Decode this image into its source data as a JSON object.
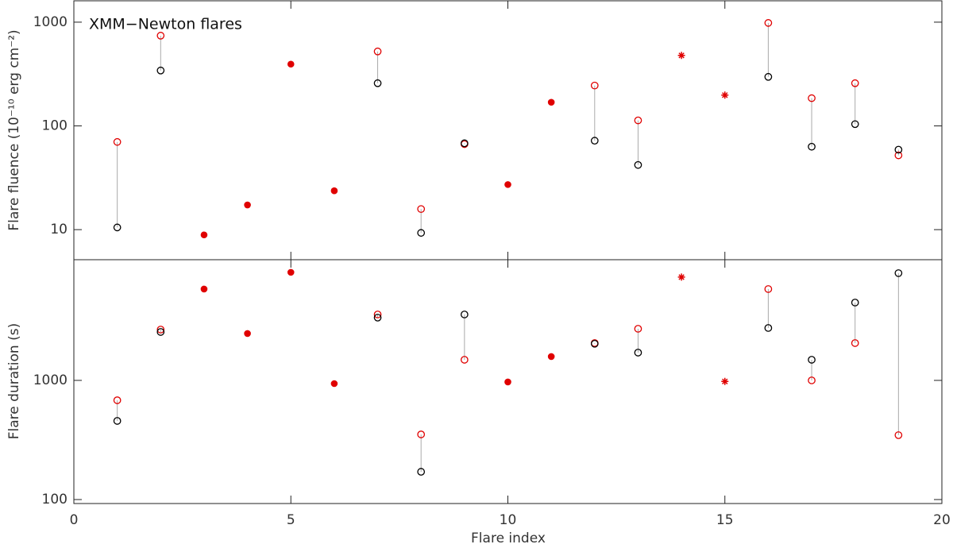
{
  "chart_data": [
    {
      "type": "scatter",
      "annotation": "XMM−Newton flares",
      "ylabel": "Flare fluence (10⁻¹⁰ erg cm⁻²)",
      "log_y": true,
      "xlim": [
        0,
        20
      ],
      "ylim": [
        5.13,
        1607
      ],
      "yticks": [
        10,
        100,
        1000
      ],
      "connectors": true,
      "series": [
        {
          "marker": "open",
          "color": "#e00000",
          "x": [
            1,
            2,
            7,
            8,
            9,
            12,
            13,
            16,
            17,
            18,
            19
          ],
          "values": [
            70,
            741,
            522,
            15.8,
            66.7,
            245,
            113,
            983,
            185,
            258,
            52
          ]
        },
        {
          "marker": "open",
          "color": "#000000",
          "x": [
            1,
            2,
            7,
            8,
            9,
            12,
            13,
            16,
            17,
            18,
            19
          ],
          "values": [
            10.5,
            342,
            258,
            9.3,
            68,
            72,
            42,
            297,
            63,
            104,
            59
          ]
        },
        {
          "marker": "filled",
          "color": "#e00000",
          "x": [
            3,
            4,
            5,
            6,
            10,
            11
          ],
          "values": [
            8.9,
            17.3,
            394,
            23.7,
            27.2,
            169
          ]
        },
        {
          "marker": "asterisk",
          "color": "#e00000",
          "x": [
            14,
            15
          ],
          "values": [
            478,
            198
          ]
        }
      ]
    },
    {
      "type": "scatter",
      "ylabel": "Flare duration (s)",
      "xlabel": "Flare index",
      "log_y": true,
      "xlim": [
        0,
        20
      ],
      "xticks": [
        0,
        5,
        10,
        15,
        20
      ],
      "ylim": [
        92.6,
        10300
      ],
      "yticks": [
        100,
        1000
      ],
      "connectors": true,
      "series": [
        {
          "marker": "open",
          "color": "#e00000",
          "x": [
            1,
            2,
            7,
            8,
            9,
            12,
            13,
            16,
            17,
            18,
            19
          ],
          "values": [
            681,
            2670,
            3575,
            352,
            1490,
            2057,
            2712,
            5843,
            1000,
            2057,
            347
          ]
        },
        {
          "marker": "open",
          "color": "#000000",
          "x": [
            1,
            2,
            7,
            8,
            9,
            12,
            13,
            16,
            17,
            18,
            19
          ],
          "values": [
            457,
            2550,
            3364,
            171,
            3575,
            2030,
            1711,
            2754,
            1490,
            4500,
            7943
          ]
        },
        {
          "marker": "filled",
          "color": "#e00000",
          "x": [
            3,
            4,
            5,
            6,
            10,
            11
          ],
          "values": [
            5843,
            2473,
            8072,
            940,
            970,
            1585
          ]
        },
        {
          "marker": "asterisk",
          "color": "#e00000",
          "x": [
            14,
            15
          ],
          "values": [
            7356,
            980
          ]
        }
      ]
    }
  ]
}
